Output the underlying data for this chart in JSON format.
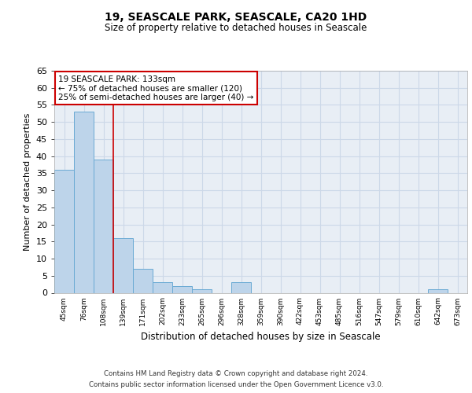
{
  "title": "19, SEASCALE PARK, SEASCALE, CA20 1HD",
  "subtitle": "Size of property relative to detached houses in Seascale",
  "xlabel": "Distribution of detached houses by size in Seascale",
  "ylabel": "Number of detached properties",
  "bar_categories": [
    "45sqm",
    "76sqm",
    "108sqm",
    "139sqm",
    "171sqm",
    "202sqm",
    "233sqm",
    "265sqm",
    "296sqm",
    "328sqm",
    "359sqm",
    "390sqm",
    "422sqm",
    "453sqm",
    "485sqm",
    "516sqm",
    "547sqm",
    "579sqm",
    "610sqm",
    "642sqm",
    "673sqm"
  ],
  "bar_values": [
    36,
    53,
    39,
    16,
    7,
    3,
    2,
    1,
    0,
    3,
    0,
    0,
    0,
    0,
    0,
    0,
    0,
    0,
    0,
    1,
    0
  ],
  "bar_color": "#bdd4ea",
  "bar_edge_color": "#6aaad4",
  "grid_color": "#ccd8e8",
  "background_color": "#e8eef5",
  "vline_color": "#cc0000",
  "annotation_text": "19 SEASCALE PARK: 133sqm\n← 75% of detached houses are smaller (120)\n25% of semi-detached houses are larger (40) →",
  "annotation_box_color": "#ffffff",
  "annotation_box_edge": "#cc0000",
  "ylim": [
    0,
    65
  ],
  "yticks": [
    0,
    5,
    10,
    15,
    20,
    25,
    30,
    35,
    40,
    45,
    50,
    55,
    60,
    65
  ],
  "footer_line1": "Contains HM Land Registry data © Crown copyright and database right 2024.",
  "footer_line2": "Contains public sector information licensed under the Open Government Licence v3.0."
}
